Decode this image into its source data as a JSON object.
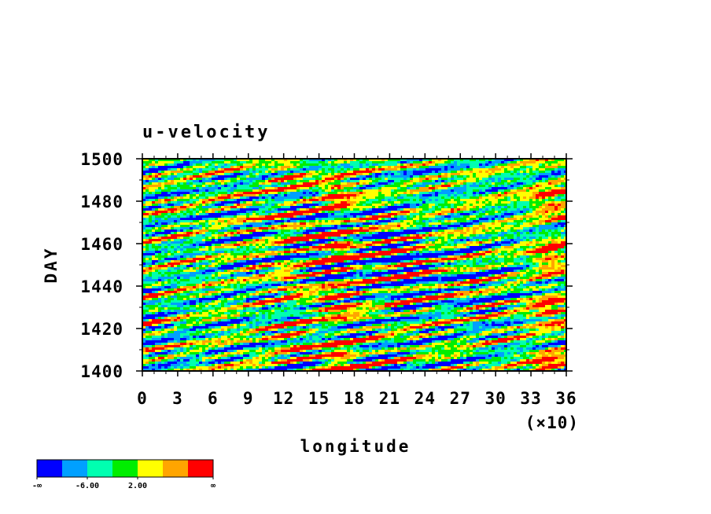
{
  "chart_data": {
    "type": "heatmap",
    "title": "u-velocity",
    "xlabel": "longitude",
    "ylabel": "DAY",
    "x_multiplier_label": "(×10)",
    "xlim": [
      0,
      36
    ],
    "ylim": [
      1400,
      1500
    ],
    "x_ticks": [
      "0",
      "3",
      "6",
      "9",
      "12",
      "15",
      "18",
      "21",
      "24",
      "27",
      "30",
      "33",
      "36"
    ],
    "y_ticks": [
      "1400",
      "1420",
      "1440",
      "1460",
      "1480",
      "1500"
    ],
    "colorbar": {
      "colors": [
        "#0000ff",
        "#00a0ff",
        "#00ffb0",
        "#00ee00",
        "#ffff00",
        "#ffa500",
        "#ff0000"
      ],
      "labels": [
        "-∞",
        "-6.00",
        "2.00",
        "∞"
      ]
    },
    "field_description_bands": [
      {
        "x_center": 16.5,
        "strength": "high"
      },
      {
        "x_center": 34.5,
        "strength": "high"
      },
      {
        "x_center": 12.5,
        "strength": "medium"
      }
    ]
  }
}
